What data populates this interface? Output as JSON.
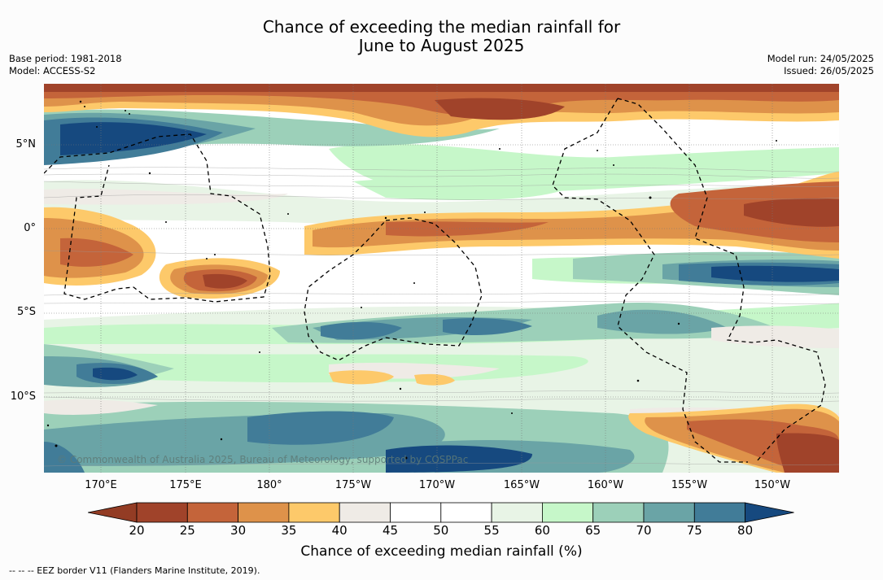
{
  "title_line1": "Chance of exceeding the median rainfall for",
  "title_line2": "June to August 2025",
  "base_period": "Base period: 1981-2018",
  "model": "Model: ACCESS-S2",
  "model_run": "Model run: 24/05/2025",
  "issued": "Issued: 26/05/2025",
  "lat_labels": [
    "5°N",
    "0°",
    "5°S",
    "10°S"
  ],
  "lon_labels": [
    "170°E",
    "175°E",
    "180°",
    "175°W",
    "170°W",
    "165°W",
    "160°W",
    "155°W",
    "150°W"
  ],
  "copyright": "© Commonwealth of Australia 2025, Bureau of Meteorology, supported by COSPPac",
  "colorbar": {
    "ticks": [
      "20",
      "25",
      "30",
      "35",
      "40",
      "45",
      "50",
      "55",
      "60",
      "65",
      "70",
      "75",
      "80"
    ],
    "colors": [
      "#a0432a",
      "#c4643a",
      "#de924a",
      "#fdc96a",
      "#efebe6",
      "#ffffff",
      "#ffffff",
      "#e8f4e6",
      "#c6f7c9",
      "#9cd0b9",
      "#6aa4a6",
      "#417c98"
    ],
    "low_extend_color": "#933c24",
    "high_extend_color": "#16497f",
    "label": "Chance of exceeding median rainfall (%)"
  },
  "footer": "--  --  -- EEZ border V11 (Flanders Marine Institute, 2019).",
  "chart_data": {
    "type": "heatmap",
    "title": "Chance of exceeding the median rainfall for June to August 2025",
    "xlabel": "",
    "ylabel": "",
    "xlim": [
      "167°E",
      "146°W"
    ],
    "ylim": [
      "14°S",
      "9°N"
    ],
    "colorbar_range": [
      20,
      80
    ],
    "bands": [
      {
        "lat": "8°N",
        "lon": "167°E–146°W",
        "chance_pct": "20–35"
      },
      {
        "lat": "5–6°N",
        "lon": "167°E–177°E",
        "chance_pct": "75–80"
      },
      {
        "lat": "1°N–2°S",
        "lon": "176°W–146°W",
        "chance_pct": "20–35"
      },
      {
        "lat": "1–3°S",
        "lon": "167°E–174°E",
        "chance_pct": "25–35"
      },
      {
        "lat": "3–4°S",
        "lon": "176°E–180°",
        "chance_pct": "20–30"
      },
      {
        "lat": "2–3°S",
        "lon": "157°W–146°W",
        "chance_pct": "75–80"
      },
      {
        "lat": "7°S",
        "lon": "180°–157°W",
        "chance_pct": "70–75"
      },
      {
        "lat": "9°S",
        "lon": "167°E–176°E",
        "chance_pct": "75–80"
      },
      {
        "lat": "12–14°S",
        "lon": "155°W–146°W",
        "chance_pct": "20–35"
      },
      {
        "lat": "12–14°S",
        "lon": "167°E–160°W",
        "chance_pct": "65–80"
      }
    ]
  }
}
